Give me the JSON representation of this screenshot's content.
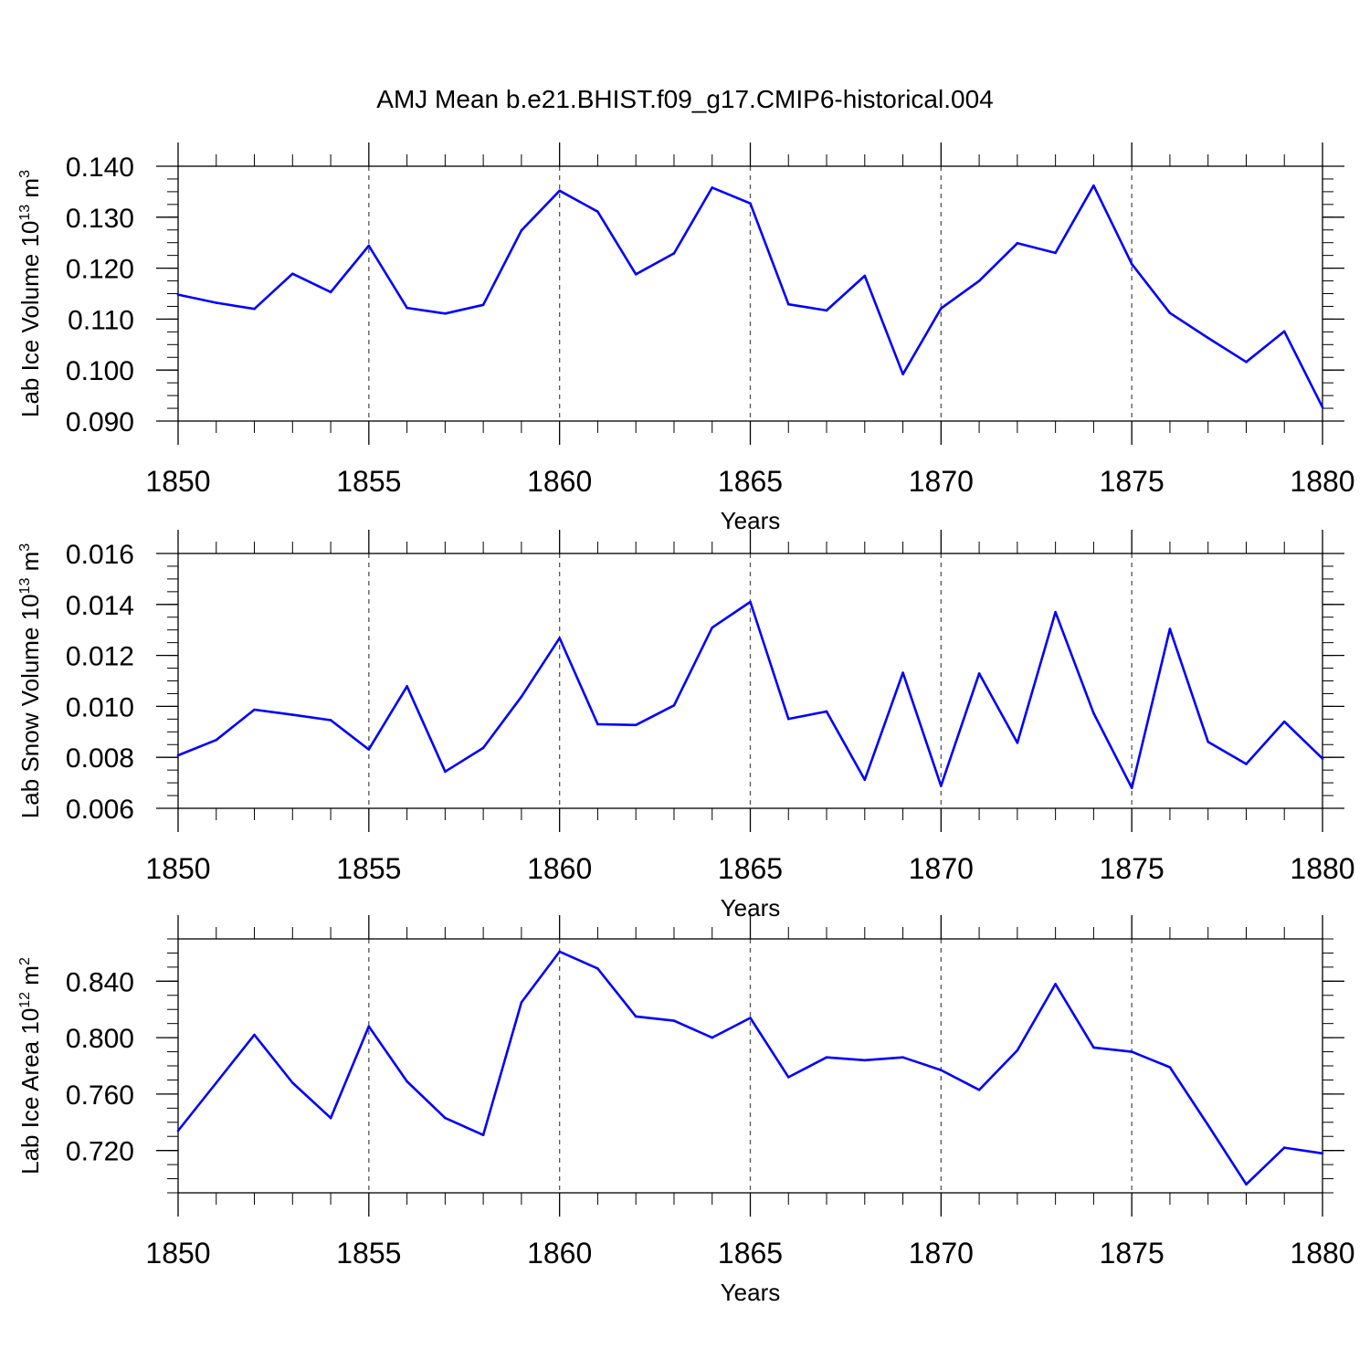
{
  "title": "AMJ Mean b.e21.BHIST.f09_g17.CMIP6-historical.004",
  "colors": {
    "series": "#0000ff",
    "grid": "#555555",
    "axes": "#000000"
  },
  "chart_data": [
    {
      "type": "line",
      "ylabel": {
        "base": "Lab Ice Volume 10",
        "exp": "13",
        "unit": " m",
        "unit_exp": "3"
      },
      "xlabel": "Years",
      "xlim": [
        1850,
        1880
      ],
      "ylim": [
        0.09,
        0.14
      ],
      "yticks": [
        {
          "value": 0.09,
          "label": "0.090"
        },
        {
          "value": 0.1,
          "label": "0.100"
        },
        {
          "value": 0.11,
          "label": "0.110"
        },
        {
          "value": 0.12,
          "label": "0.120"
        },
        {
          "value": 0.13,
          "label": "0.130"
        },
        {
          "value": 0.14,
          "label": "0.140"
        }
      ],
      "yminor_step": 0.0025,
      "xticks": [
        {
          "value": 1850,
          "label": "1850"
        },
        {
          "value": 1855,
          "label": "1855"
        },
        {
          "value": 1860,
          "label": "1860"
        },
        {
          "value": 1865,
          "label": "1865"
        },
        {
          "value": 1870,
          "label": "1870"
        },
        {
          "value": 1875,
          "label": "1875"
        },
        {
          "value": 1880,
          "label": "1880"
        }
      ],
      "x": [
        1850,
        1851,
        1852,
        1853,
        1854,
        1855,
        1856,
        1857,
        1858,
        1859,
        1860,
        1861,
        1862,
        1863,
        1864,
        1865,
        1866,
        1867,
        1868,
        1869,
        1870,
        1871,
        1872,
        1873,
        1874,
        1875,
        1876,
        1877,
        1878,
        1879,
        1880
      ],
      "values": [
        0.1148,
        0.1132,
        0.112,
        0.1189,
        0.1153,
        0.1244,
        0.1122,
        0.1111,
        0.1128,
        0.1274,
        0.1352,
        0.1311,
        0.1188,
        0.1229,
        0.1358,
        0.1327,
        0.1129,
        0.1117,
        0.1185,
        0.0992,
        0.1121,
        0.1175,
        0.1249,
        0.123,
        0.1362,
        0.1208,
        0.1112,
        0.1063,
        0.1016,
        0.1076,
        0.0927
      ]
    },
    {
      "type": "line",
      "ylabel": {
        "base": "Lab Snow Volume 10",
        "exp": "13",
        "unit": " m",
        "unit_exp": "3"
      },
      "xlabel": "Years",
      "xlim": [
        1850,
        1880
      ],
      "ylim": [
        0.006,
        0.016
      ],
      "yticks": [
        {
          "value": 0.006,
          "label": "0.006"
        },
        {
          "value": 0.008,
          "label": "0.008"
        },
        {
          "value": 0.01,
          "label": "0.010"
        },
        {
          "value": 0.012,
          "label": "0.012"
        },
        {
          "value": 0.014,
          "label": "0.014"
        },
        {
          "value": 0.016,
          "label": "0.016"
        }
      ],
      "yminor_step": 0.0005,
      "xticks": [
        {
          "value": 1850,
          "label": "1850"
        },
        {
          "value": 1855,
          "label": "1855"
        },
        {
          "value": 1860,
          "label": "1860"
        },
        {
          "value": 1865,
          "label": "1865"
        },
        {
          "value": 1870,
          "label": "1870"
        },
        {
          "value": 1875,
          "label": "1875"
        },
        {
          "value": 1880,
          "label": "1880"
        }
      ],
      "x": [
        1850,
        1851,
        1852,
        1853,
        1854,
        1855,
        1856,
        1857,
        1858,
        1859,
        1860,
        1861,
        1862,
        1863,
        1864,
        1865,
        1866,
        1867,
        1868,
        1869,
        1870,
        1871,
        1872,
        1873,
        1874,
        1875,
        1876,
        1877,
        1878,
        1879,
        1880
      ],
      "values": [
        0.00808,
        0.00868,
        0.00987,
        0.00967,
        0.00946,
        0.00831,
        0.01079,
        0.00744,
        0.00837,
        0.01038,
        0.01268,
        0.0093,
        0.00927,
        0.01004,
        0.01309,
        0.0141,
        0.00951,
        0.0098,
        0.00712,
        0.01132,
        0.00688,
        0.01129,
        0.00857,
        0.0137,
        0.00973,
        0.0068,
        0.01304,
        0.00861,
        0.00774,
        0.0094,
        0.00795
      ]
    },
    {
      "type": "line",
      "ylabel": {
        "base": "Lab Ice Area 10",
        "exp": "12",
        "unit": " m",
        "unit_exp": "2"
      },
      "xlabel": "Years",
      "xlim": [
        1850,
        1880
      ],
      "ylim": [
        0.69,
        0.87
      ],
      "yticks": [
        {
          "value": 0.72,
          "label": "0.720"
        },
        {
          "value": 0.76,
          "label": "0.760"
        },
        {
          "value": 0.8,
          "label": "0.800"
        },
        {
          "value": 0.84,
          "label": "0.840"
        }
      ],
      "yminor_step": 0.01,
      "xticks": [
        {
          "value": 1850,
          "label": "1850"
        },
        {
          "value": 1855,
          "label": "1855"
        },
        {
          "value": 1860,
          "label": "1860"
        },
        {
          "value": 1865,
          "label": "1865"
        },
        {
          "value": 1870,
          "label": "1870"
        },
        {
          "value": 1875,
          "label": "1875"
        },
        {
          "value": 1880,
          "label": "1880"
        }
      ],
      "x": [
        1850,
        1851,
        1852,
        1853,
        1854,
        1855,
        1856,
        1857,
        1858,
        1859,
        1860,
        1861,
        1862,
        1863,
        1864,
        1865,
        1866,
        1867,
        1868,
        1869,
        1870,
        1871,
        1872,
        1873,
        1874,
        1875,
        1876,
        1877,
        1878,
        1879,
        1880
      ],
      "values": [
        0.734,
        0.768,
        0.802,
        0.768,
        0.743,
        0.808,
        0.769,
        0.743,
        0.731,
        0.825,
        0.861,
        0.849,
        0.815,
        0.812,
        0.8,
        0.814,
        0.772,
        0.786,
        0.784,
        0.786,
        0.777,
        0.763,
        0.791,
        0.838,
        0.793,
        0.79,
        0.779,
        0.738,
        0.696,
        0.722,
        0.718
      ]
    }
  ]
}
